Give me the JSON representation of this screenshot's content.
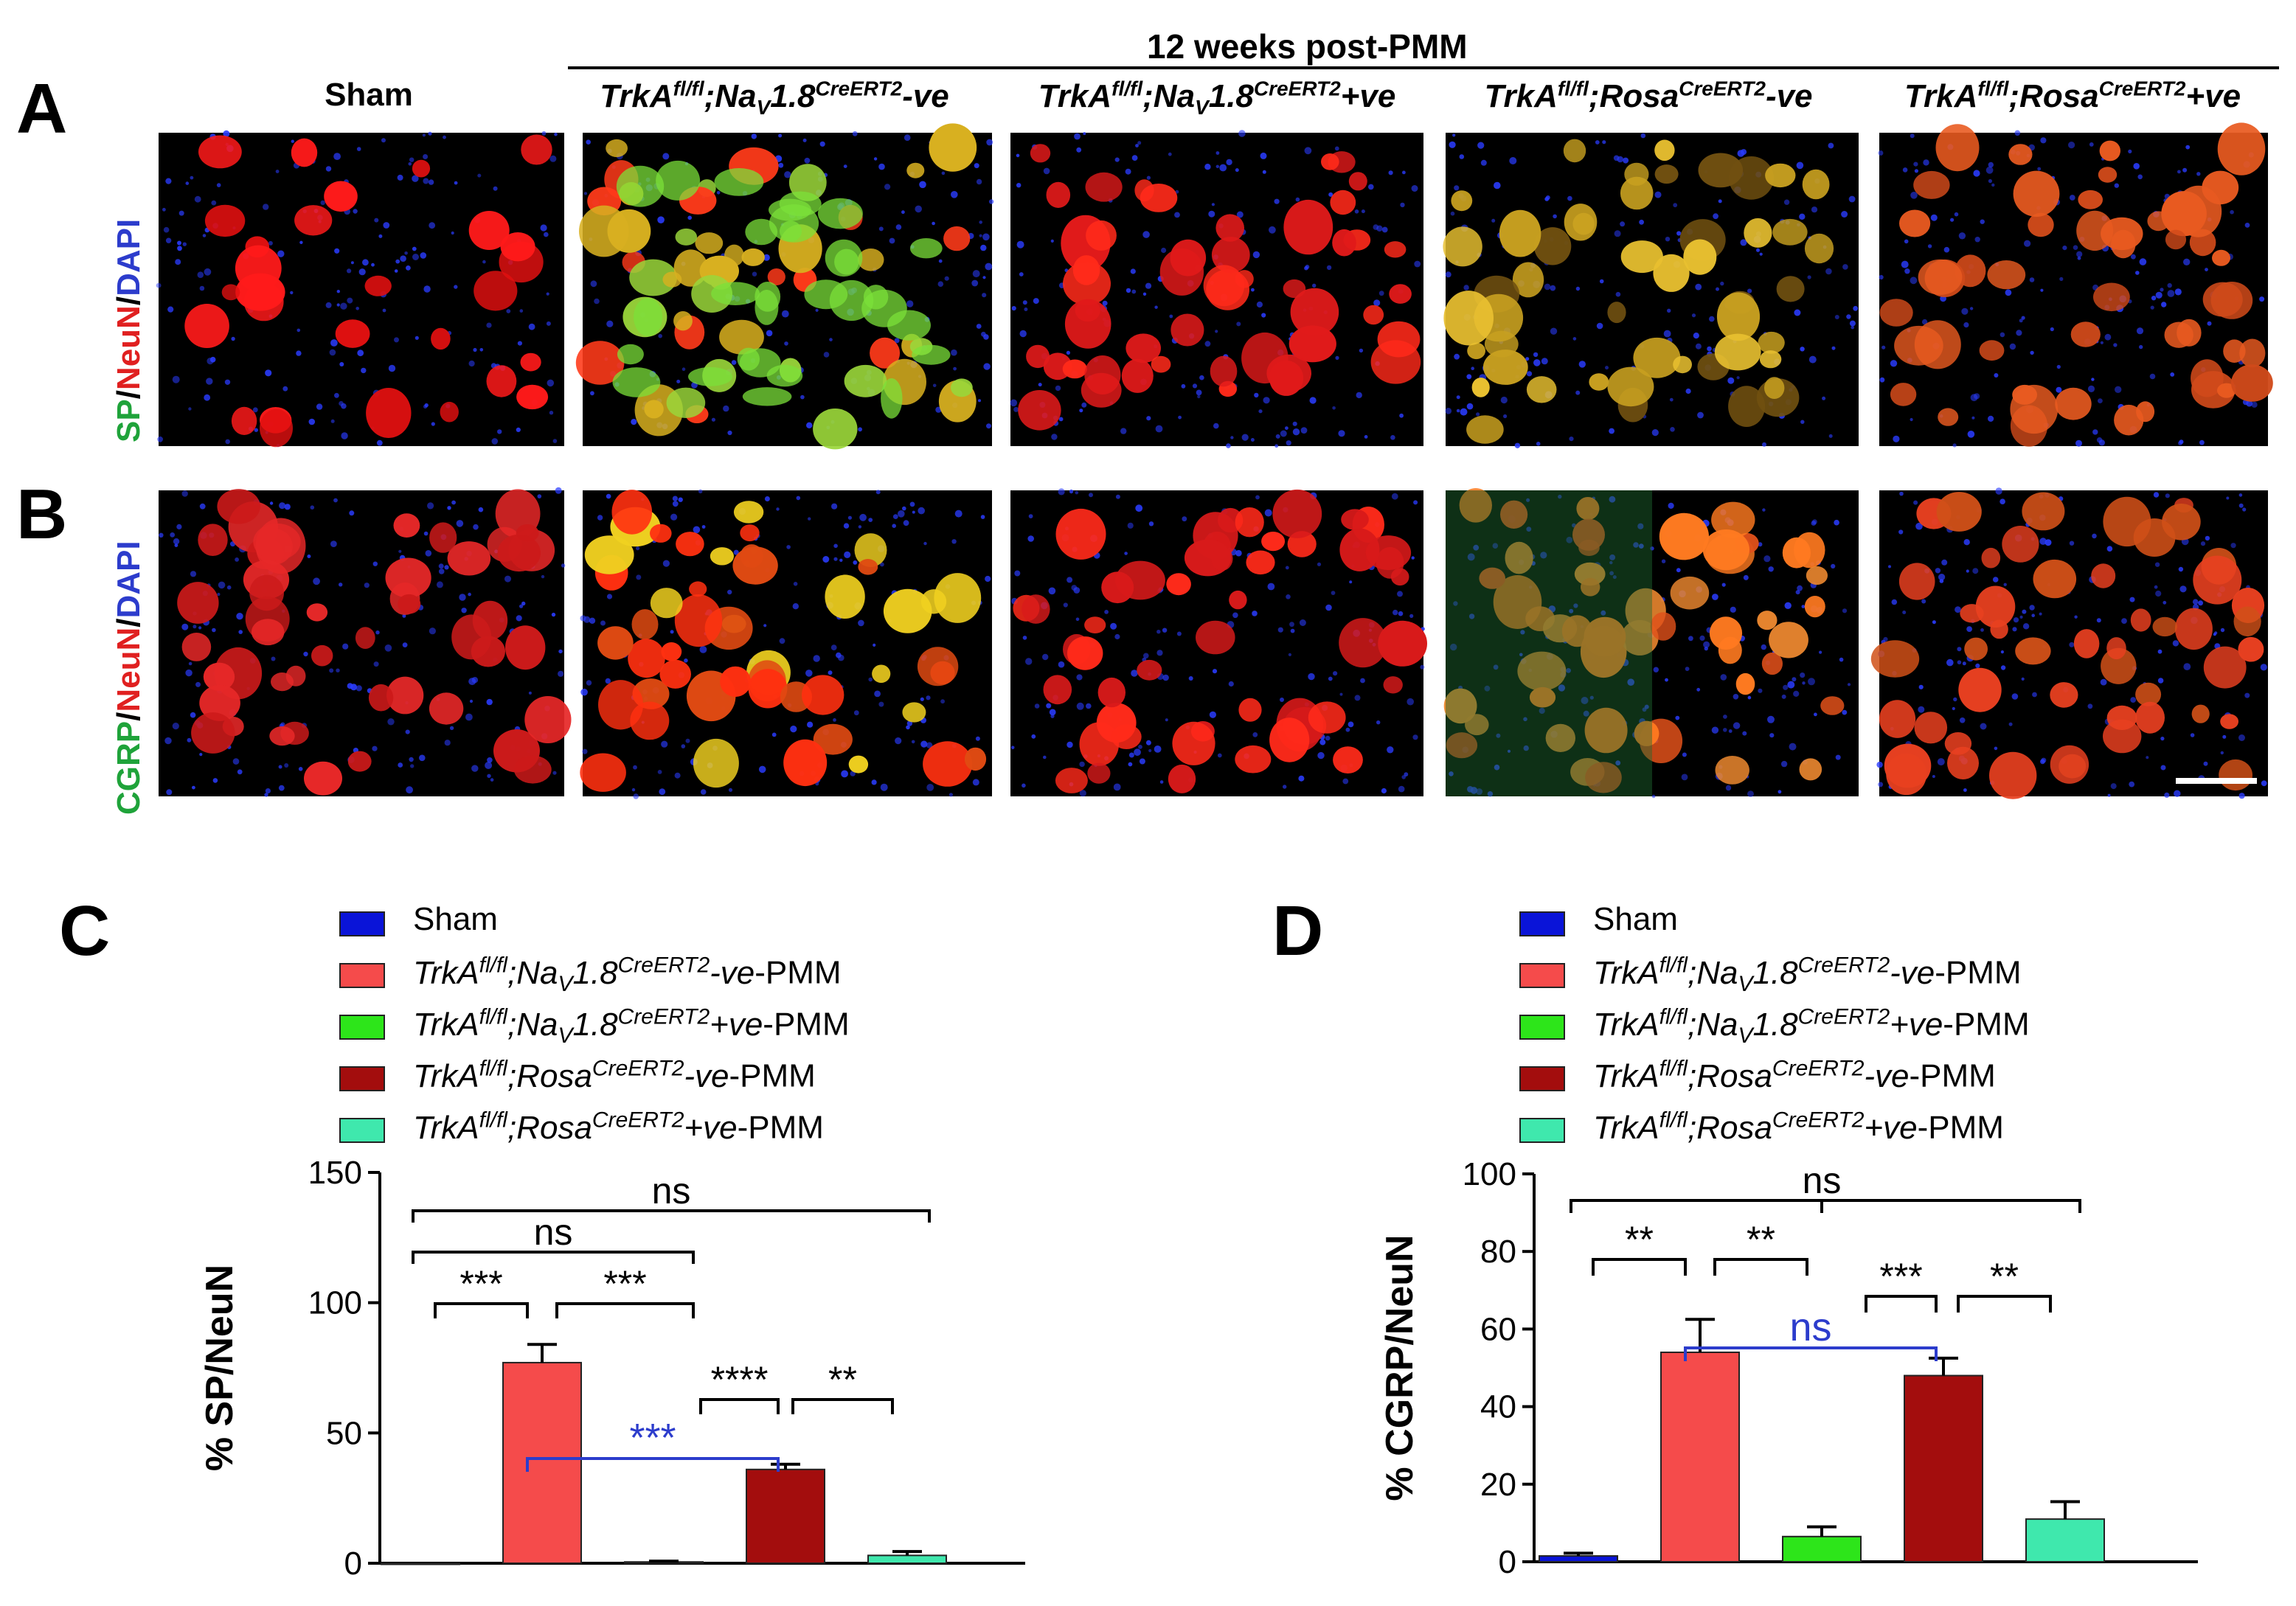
{
  "panels": {
    "A": "A",
    "B": "B",
    "C": "C",
    "D": "D"
  },
  "header": {
    "group_title": "12 weeks post-PMM",
    "columns": [
      {
        "label": "Sham"
      },
      {
        "label": "TrkAfl/fl;NaV1.8CreERT2-ve"
      },
      {
        "label": "TrkAfl/fl;NaV1.8CreERT2+ve"
      },
      {
        "label": "TrkAfl/fl;RosaCreERT2-ve"
      },
      {
        "label": "TrkAfl/fl;RosaCreERT2+ve"
      }
    ]
  },
  "row_labels": {
    "A": {
      "parts": [
        "SP",
        "/",
        "NeuN",
        "/",
        "DAPI"
      ],
      "colors": [
        "#1fa33a",
        "#000000",
        "#e02020",
        "#000000",
        "#2c3ccc"
      ]
    },
    "B": {
      "parts": [
        "CGRP",
        "/",
        "NeuN",
        "/",
        "DAPI"
      ],
      "colors": [
        "#1fa33a",
        "#000000",
        "#e02020",
        "#000000",
        "#2c3ccc"
      ]
    }
  },
  "legend": [
    {
      "label": "Sham",
      "color": "#0a14d8"
    },
    {
      "label": "TrkAfl/fl;NaV1.8CreERT2-ve-PMM",
      "color": "#f54b4b"
    },
    {
      "label": "TrkAfl/fl;NaV1.8CreERT2+ve-PMM",
      "color": "#2de51a"
    },
    {
      "label": "TrkAfl/fl;RosaCreERT2-ve-PMM",
      "color": "#a30d0d"
    },
    {
      "label": "TrkAfl/fl;RosaCreERT2+ve-PMM",
      "color": "#3fe8ad"
    }
  ],
  "chart_data": [
    {
      "type": "bar",
      "panel": "C",
      "ylabel": "% SP/NeuN",
      "ylim": [
        0,
        150
      ],
      "yticks": [
        0,
        50,
        100,
        150
      ],
      "categories": [
        "Sham",
        "TrkAfl/fl;NaV1.8CreERT2-ve-PMM",
        "TrkAfl/fl;NaV1.8CreERT2+ve-PMM",
        "TrkAfl/fl;RosaCreERT2-ve-PMM",
        "TrkAfl/fl;RosaCreERT2+ve-PMM"
      ],
      "values": [
        0,
        77,
        0.5,
        36,
        3
      ],
      "errors": [
        0,
        7,
        0.3,
        2,
        1.5
      ],
      "colors": [
        "#0a14d8",
        "#f54b4b",
        "#2de51a",
        "#a30d0d",
        "#3fe8ad"
      ],
      "comparisons": [
        {
          "from": 0,
          "to": 4,
          "label": "ns",
          "color": "#000000"
        },
        {
          "from": 0,
          "to": 2,
          "label": "ns",
          "color": "#000000"
        },
        {
          "from": 0,
          "to": 1,
          "label": "***",
          "color": "#000000"
        },
        {
          "from": 1,
          "to": 2,
          "label": "***",
          "color": "#000000"
        },
        {
          "from": 2,
          "to": 3,
          "label": "****",
          "color": "#000000"
        },
        {
          "from": 3,
          "to": 4,
          "label": "**",
          "color": "#000000"
        },
        {
          "from": 1,
          "to": 3,
          "label": "***",
          "color": "#2c3ccc"
        }
      ]
    },
    {
      "type": "bar",
      "panel": "D",
      "ylabel": "% CGRP/NeuN",
      "ylim": [
        0,
        100
      ],
      "yticks": [
        0,
        20,
        40,
        60,
        80,
        100
      ],
      "categories": [
        "Sham",
        "TrkAfl/fl;NaV1.8CreERT2-ve-PMM",
        "TrkAfl/fl;NaV1.8CreERT2+ve-PMM",
        "TrkAfl/fl;RosaCreERT2-ve-PMM",
        "TrkAfl/fl;RosaCreERT2+ve-PMM"
      ],
      "values": [
        1.5,
        54,
        6.5,
        48,
        11
      ],
      "errors": [
        0.7,
        8.5,
        2.5,
        4.5,
        4.5
      ],
      "colors": [
        "#0a14d8",
        "#f54b4b",
        "#2de51a",
        "#a30d0d",
        "#3fe8ad"
      ],
      "comparisons": [
        {
          "from": 0,
          "to": 4,
          "label": "ns",
          "color": "#000000"
        },
        {
          "from": 0,
          "to": 1,
          "label": "**",
          "color": "#000000"
        },
        {
          "from": 1,
          "to": 2,
          "label": "**",
          "color": "#000000"
        },
        {
          "from": 2,
          "to": 3,
          "label": "***",
          "color": "#000000"
        },
        {
          "from": 3,
          "to": 4,
          "label": "**",
          "color": "#000000"
        },
        {
          "from": 1,
          "to": 3,
          "label": "ns",
          "color": "#2c3ccc"
        }
      ]
    }
  ]
}
